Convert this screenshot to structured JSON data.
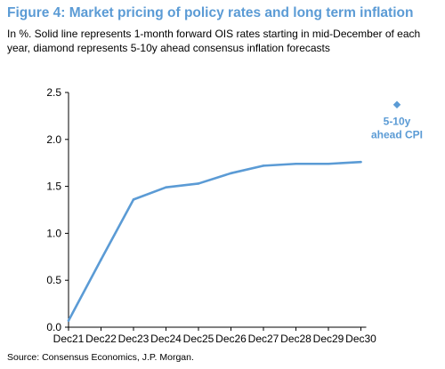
{
  "title": "Figure 4: Market pricing of policy rates and long term inflation",
  "subtitle": "In %. Solid line represents 1-month forward OIS rates starting in mid-December of each year, diamond represents 5-10y ahead consensus inflation forecasts",
  "source": "Source: Consensus Economics, J.P. Morgan.",
  "colors": {
    "accent": "#5b9bd5",
    "axis": "#000000"
  },
  "chart_data": {
    "type": "line",
    "categories": [
      "Dec21",
      "Dec22",
      "Dec23",
      "Dec24",
      "Dec25",
      "Dec26",
      "Dec27",
      "Dec28",
      "Dec29",
      "Dec30"
    ],
    "series": [
      {
        "values": [
          0.07,
          0.72,
          1.36,
          1.49,
          1.53,
          1.64,
          1.72,
          1.74,
          1.74,
          1.76
        ]
      }
    ],
    "point": {
      "label_line1": "5-10y",
      "label_line2": "ahead CPI",
      "value": 2.37
    },
    "ylim": [
      0,
      2.5
    ],
    "yticks": [
      "0.0",
      "0.5",
      "1.0",
      "1.5",
      "2.0",
      "2.5"
    ],
    "ytick_values": [
      0,
      0.5,
      1.0,
      1.5,
      2.0,
      2.5
    ],
    "grid": false
  }
}
